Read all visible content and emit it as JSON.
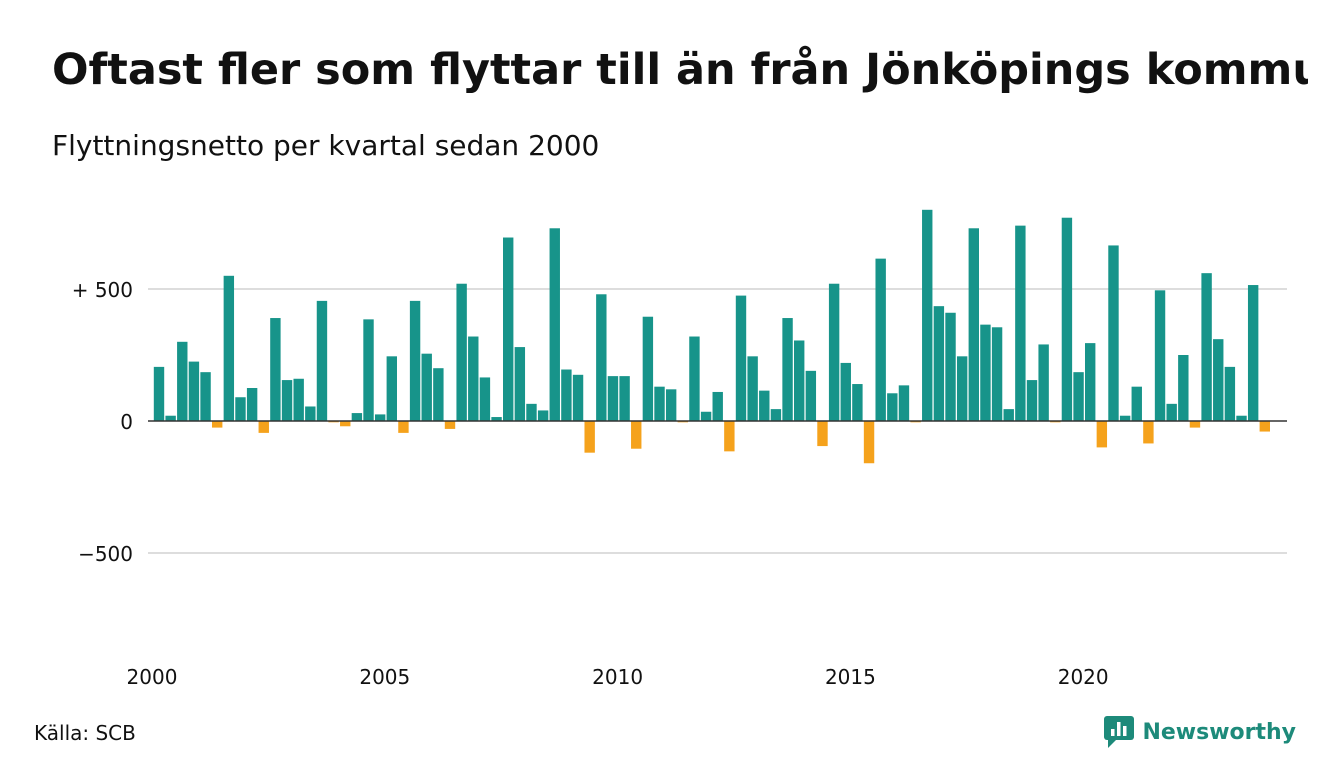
{
  "header": {
    "title": "Oftast fler som flyttar till än från Jönköpings kommun",
    "subtitle": "Flyttningsnetto per kvartal sedan 2000"
  },
  "footer": {
    "source": "Källa: SCB",
    "brand": "Newsworthy",
    "brand_icon": "newsworthy-logo-icon"
  },
  "colors": {
    "positive": "#17948a",
    "negative": "#f5a21c",
    "grid": "#dddddd",
    "zero_line": "#333333",
    "brand": "#1d8a7a"
  },
  "chart_data": {
    "type": "bar",
    "title": "Oftast fler som flyttar till än från Jönköpings kommun",
    "subtitle": "Flyttningsnetto per kvartal sedan 2000",
    "ylim": [
      -850,
      800
    ],
    "y_ticks": [
      {
        "value": 500,
        "label": "+ 500"
      },
      {
        "value": 0,
        "label": "0"
      },
      {
        "value": -500,
        "label": "−500"
      }
    ],
    "x_ticks": [
      {
        "year": 2000,
        "label": "2000"
      },
      {
        "year": 2005,
        "label": "2005"
      },
      {
        "year": 2010,
        "label": "2010"
      },
      {
        "year": 2015,
        "label": "2015"
      },
      {
        "year": 2020,
        "label": "2020"
      }
    ],
    "grid": true,
    "start_year": 2000,
    "quarters_per_year": 4,
    "values": [
      205,
      20,
      300,
      225,
      185,
      -25,
      550,
      90,
      125,
      -45,
      390,
      155,
      160,
      55,
      455,
      -5,
      -20,
      30,
      385,
      25,
      245,
      -45,
      455,
      255,
      200,
      -30,
      520,
      320,
      165,
      15,
      695,
      280,
      65,
      40,
      730,
      195,
      175,
      -120,
      480,
      170,
      170,
      -105,
      395,
      130,
      120,
      -5,
      320,
      35,
      110,
      -115,
      475,
      245,
      115,
      45,
      390,
      305,
      190,
      -95,
      520,
      220,
      140,
      -160,
      615,
      105,
      135,
      -5,
      800,
      435,
      410,
      245,
      730,
      365,
      355,
      45,
      740,
      155,
      290,
      -5,
      770,
      185,
      295,
      -100,
      665,
      20,
      130,
      -85,
      495,
      65,
      250,
      -25,
      560,
      310,
      205,
      20,
      515,
      -40
    ]
  }
}
